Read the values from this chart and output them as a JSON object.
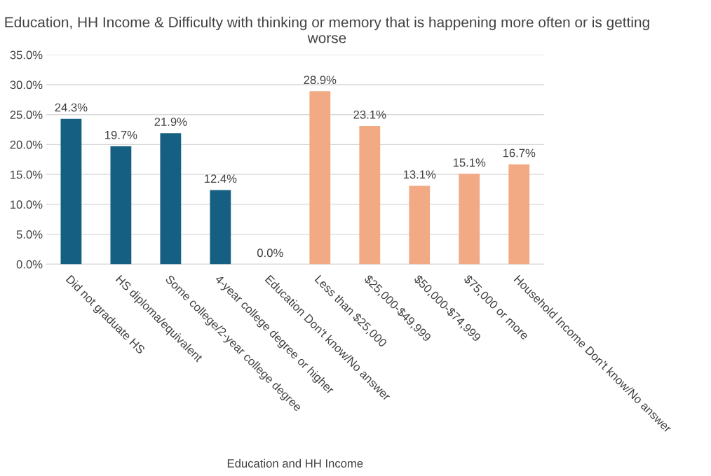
{
  "chart_data": {
    "type": "bar",
    "title": "Education, HH Income & Difficulty with thinking or memory that is happening more often or is getting worse",
    "xlabel": "Education and HH Income",
    "categories": [
      "Did not graduate HS",
      "HS diploma/equivalent",
      "Some college/2-year college degree",
      "4-year college degree or higher",
      "Education Don't know/No answer",
      "Less than $25,000",
      "$25,000-$49,999",
      "$50,000-$74,999",
      "$75,000 or more",
      "Household Income Don't know/No answer"
    ],
    "values": [
      24.3,
      19.7,
      21.9,
      12.4,
      0.0,
      28.9,
      23.1,
      13.1,
      15.1,
      16.7
    ],
    "colors": [
      "#156082",
      "#156082",
      "#156082",
      "#156082",
      "#156082",
      "#f2aa84",
      "#f2aa84",
      "#f2aa84",
      "#f2aa84",
      "#f2aa84"
    ],
    "value_labels": [
      "24.3%",
      "19.7%",
      "21.9%",
      "12.4%",
      "0.0%",
      "28.9%",
      "23.1%",
      "13.1%",
      "15.1%",
      "16.7%"
    ],
    "ylim": [
      0,
      35
    ],
    "yticks": [
      {
        "value": 0,
        "label": "0.0%"
      },
      {
        "value": 5,
        "label": "5.0%"
      },
      {
        "value": 10,
        "label": "10.0%"
      },
      {
        "value": 15,
        "label": "15.0%"
      },
      {
        "value": 20,
        "label": "20.0%"
      },
      {
        "value": 25,
        "label": "25.0%"
      },
      {
        "value": 30,
        "label": "30.0%"
      },
      {
        "value": 35,
        "label": "35.0%"
      }
    ],
    "grid": "y"
  }
}
